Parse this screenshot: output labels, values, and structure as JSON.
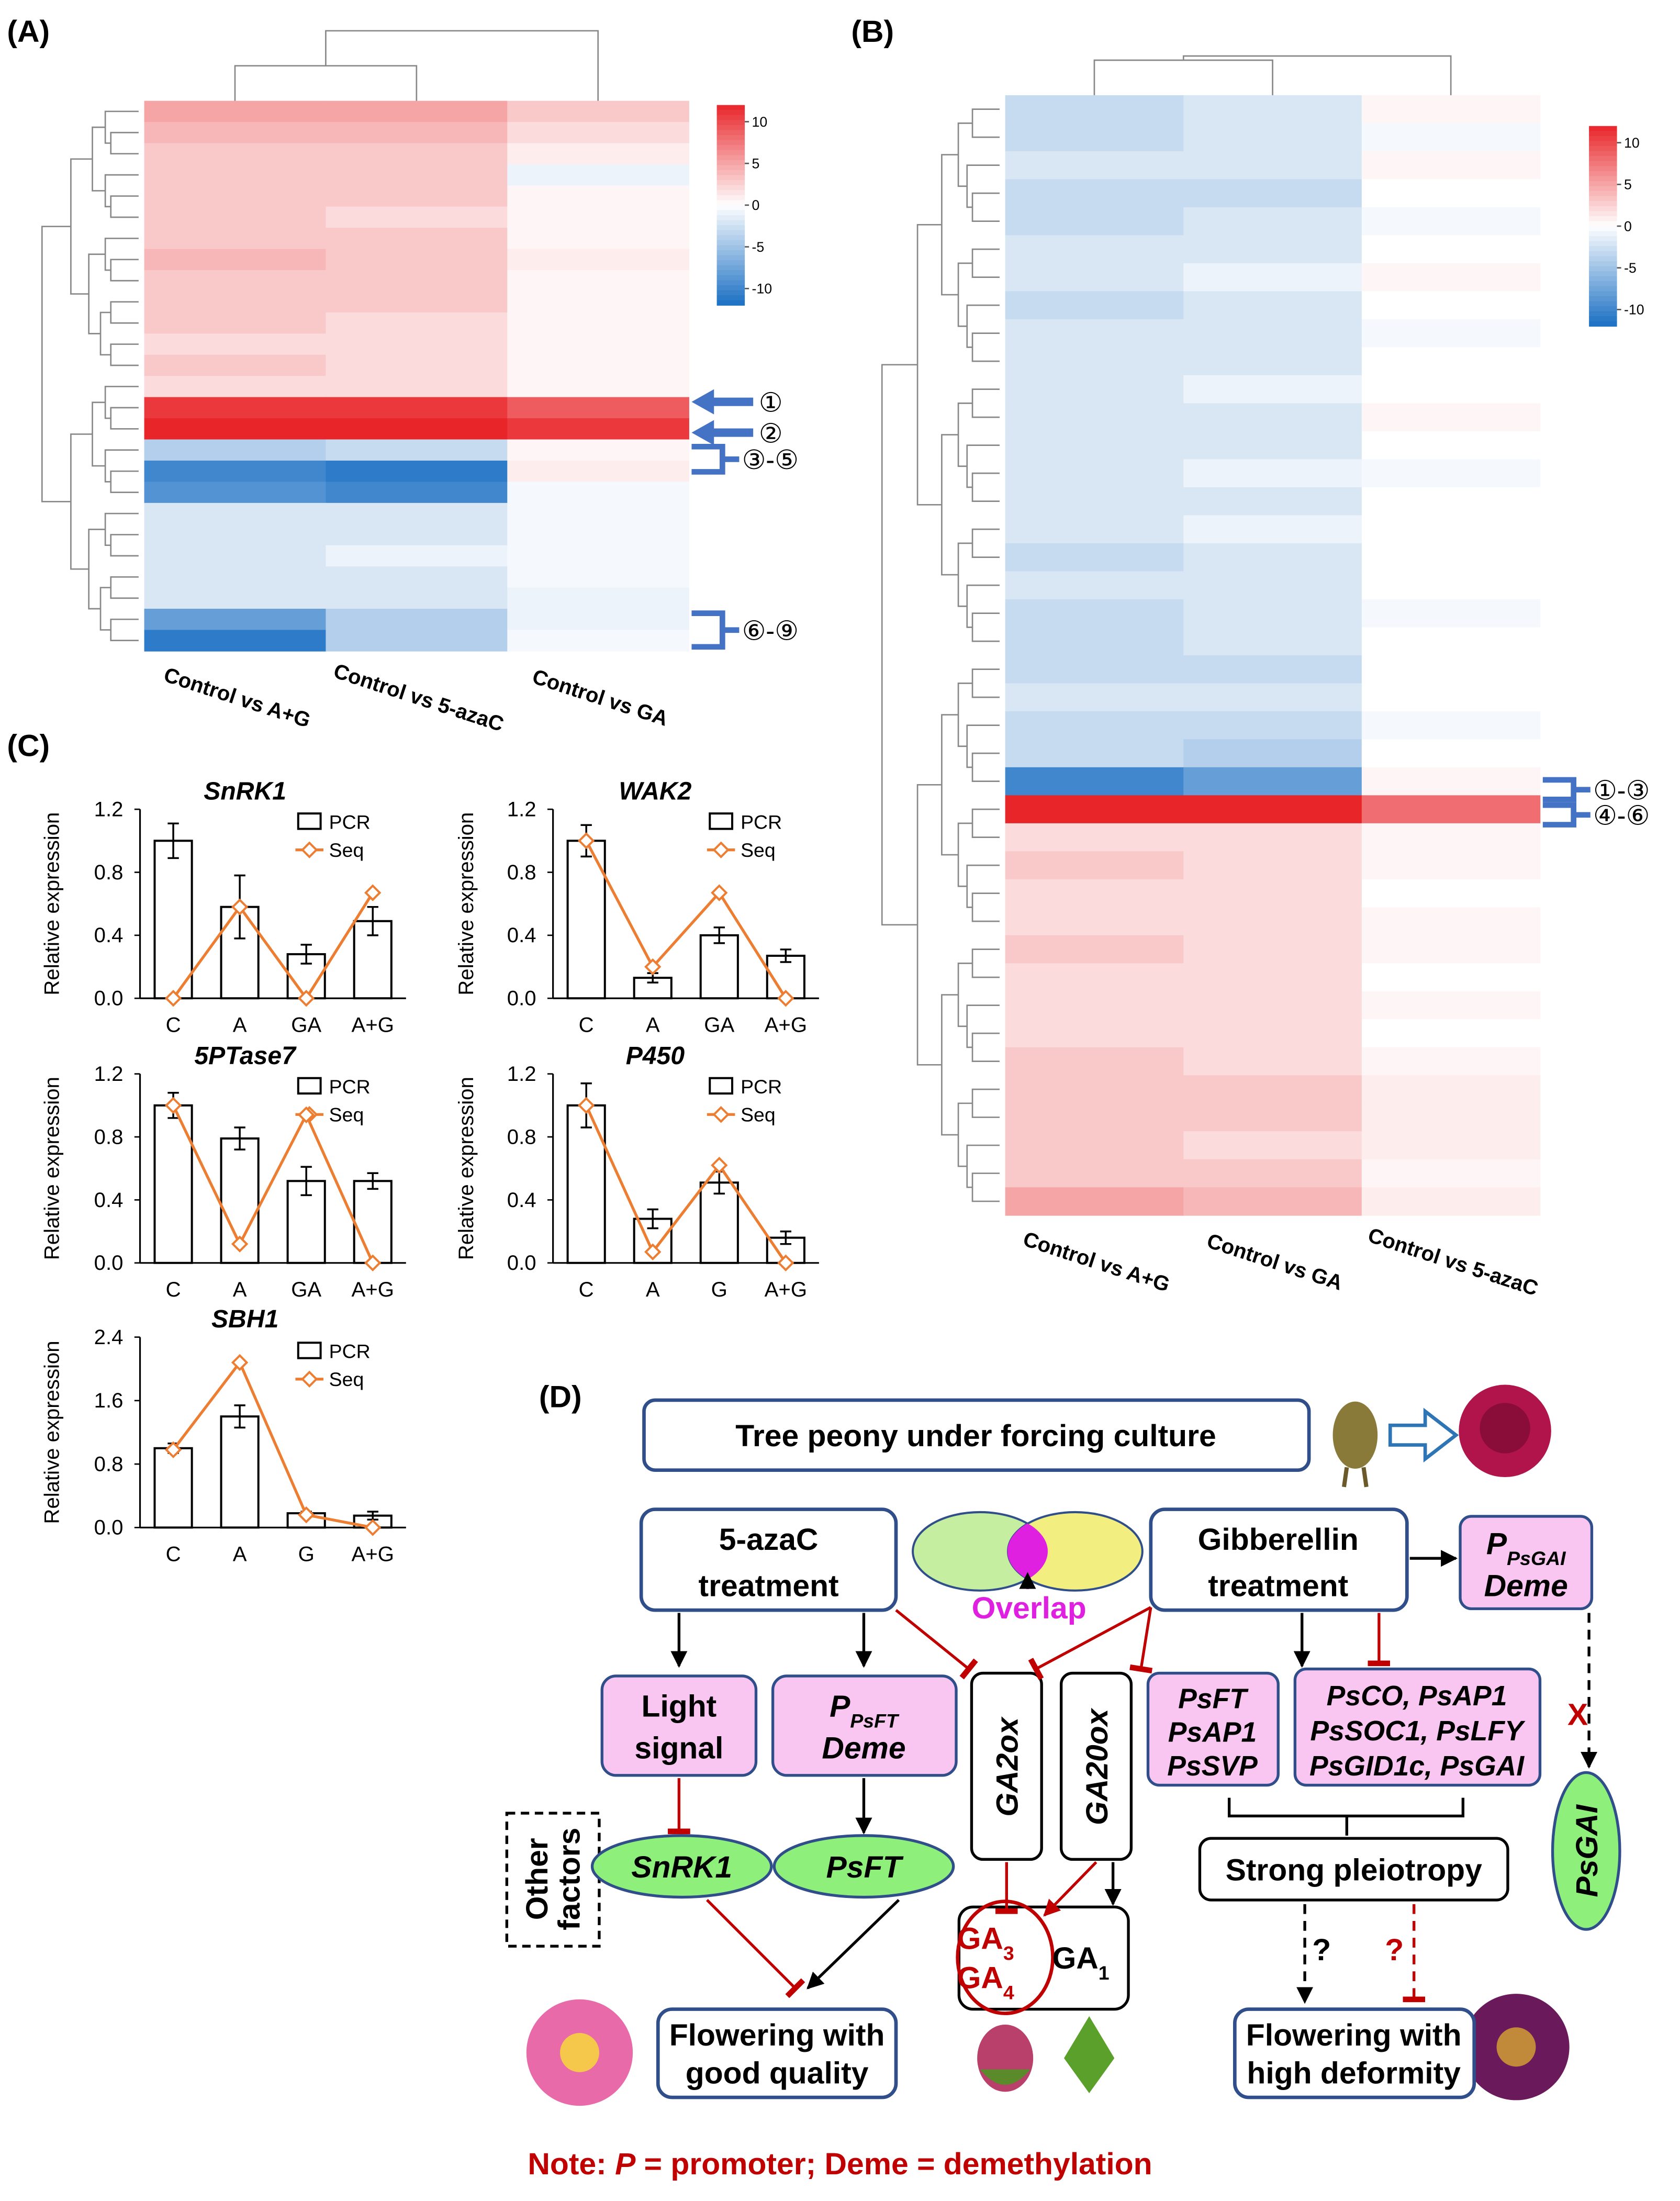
{
  "panel_labels": [
    "(A)",
    "(B)",
    "(C)"
  ],
  "chart_data": [
    {
      "type": "heatmap",
      "categories": [
        "Control vs A+G",
        "Control vs 5-azaC",
        "Control vs GA"
      ],
      "values": [
        [
          5,
          5,
          3
        ],
        [
          4,
          4,
          2
        ],
        [
          3,
          3,
          1
        ],
        [
          3,
          3,
          -1
        ],
        [
          3,
          3,
          0.5
        ],
        [
          3,
          2,
          0.5
        ],
        [
          3,
          3,
          0.5
        ],
        [
          4,
          3,
          1
        ],
        [
          3,
          3,
          0.5
        ],
        [
          3,
          3,
          0.5
        ],
        [
          3,
          2,
          0.5
        ],
        [
          2,
          2,
          0.5
        ],
        [
          3,
          2,
          0.5
        ],
        [
          2,
          2,
          0.5
        ],
        [
          11,
          11,
          9
        ],
        [
          12,
          12,
          11
        ],
        [
          -4,
          -3,
          0.5
        ],
        [
          -10,
          -11,
          1
        ],
        [
          -9,
          -10,
          -0.5
        ],
        [
          -2,
          -2,
          -0.5
        ],
        [
          -2,
          -2,
          -0.5
        ],
        [
          -2,
          -1,
          -0.5
        ],
        [
          -2,
          -2,
          -0.5
        ],
        [
          -2,
          -2,
          -1
        ],
        [
          -8,
          -4,
          -1
        ],
        [
          -11,
          -4,
          -0.5
        ]
      ],
      "clim": [
        -12,
        12
      ],
      "colorbar_ticks": [
        10,
        5,
        0,
        -5,
        -10
      ],
      "colors": [
        "#1a6fc4",
        "#ffffff",
        "#e8262a"
      ],
      "annotations": [
        "①",
        "②",
        "③-⑤",
        "⑥-⑨"
      ]
    },
    {
      "type": "heatmap",
      "categories": [
        "Control vs A+G",
        "Control vs GA",
        "Control vs 5-azaC"
      ],
      "values": [
        [
          -3,
          -2,
          0.5
        ],
        [
          -3,
          -2,
          -0.5
        ],
        [
          -2,
          -2,
          0.5
        ],
        [
          -3,
          -3,
          0
        ],
        [
          -3,
          -2,
          -0.5
        ],
        [
          -2,
          -2,
          0
        ],
        [
          -2,
          -1,
          0.5
        ],
        [
          -3,
          -2,
          0
        ],
        [
          -2,
          -2,
          -0.5
        ],
        [
          -2,
          -2,
          0
        ],
        [
          -2,
          -1,
          0
        ],
        [
          -2,
          -2,
          0.5
        ],
        [
          -2,
          -2,
          0
        ],
        [
          -2,
          -1,
          -0.5
        ],
        [
          -2,
          -2,
          0
        ],
        [
          -2,
          -1,
          0
        ],
        [
          -3,
          -2,
          0
        ],
        [
          -2,
          -2,
          0
        ],
        [
          -3,
          -2,
          -0.5
        ],
        [
          -3,
          -2,
          0
        ],
        [
          -3,
          -3,
          0
        ],
        [
          -2,
          -2,
          0
        ],
        [
          -3,
          -3,
          -0.5
        ],
        [
          -3,
          -4,
          0
        ],
        [
          -10,
          -8,
          0.5
        ],
        [
          12,
          12,
          8
        ],
        [
          2,
          2,
          0.5
        ],
        [
          3,
          2,
          0.5
        ],
        [
          2,
          2,
          0
        ],
        [
          2,
          2,
          0.5
        ],
        [
          3,
          2,
          0.5
        ],
        [
          2,
          2,
          0
        ],
        [
          2,
          2,
          0.5
        ],
        [
          2,
          2,
          0
        ],
        [
          3,
          2,
          0.5
        ],
        [
          3,
          3,
          1
        ],
        [
          3,
          3,
          1
        ],
        [
          3,
          2,
          1
        ],
        [
          3,
          3,
          0.5
        ],
        [
          5,
          4,
          1
        ]
      ],
      "clim": [
        -12,
        12
      ],
      "colorbar_ticks": [
        10,
        5,
        0,
        -5,
        -10
      ],
      "colors": [
        "#1a6fc4",
        "#ffffff",
        "#e8262a"
      ],
      "annotations": [
        "①-③",
        "④-⑥"
      ]
    },
    {
      "type": "bar",
      "title": "SnRK1",
      "y_label": "Relative expression",
      "categories": [
        "C",
        "A",
        "GA",
        "A+G"
      ],
      "ylim": [
        0,
        1.2
      ],
      "yticks": [
        {
          "value": 0,
          "label": "0.0"
        },
        0.4,
        0.8,
        1.2
      ],
      "series": [
        {
          "name": "PCR",
          "kind": "bar",
          "color": "#000000",
          "values": [
            1.0,
            0.58,
            0.28,
            0.49
          ],
          "errors": [
            0.11,
            0.2,
            0.06,
            0.09
          ]
        },
        {
          "name": "Seq",
          "kind": "line",
          "color": "#ed7d31",
          "values": [
            0,
            0.58,
            0,
            0.67
          ]
        }
      ]
    },
    {
      "type": "bar",
      "title": "WAK2",
      "y_label": "Relative expression",
      "categories": [
        "C",
        "A",
        "GA",
        "A+G"
      ],
      "ylim": [
        0,
        1.2
      ],
      "yticks": [
        {
          "value": 0,
          "label": "0.0"
        },
        0.4,
        0.8,
        1.2
      ],
      "series": [
        {
          "name": "PCR",
          "kind": "bar",
          "color": "#000000",
          "values": [
            1.0,
            0.13,
            0.4,
            0.27
          ],
          "errors": [
            0.1,
            0.03,
            0.05,
            0.04
          ]
        },
        {
          "name": "Seq",
          "kind": "line",
          "color": "#ed7d31",
          "values": [
            1.0,
            0.2,
            0.67,
            0
          ]
        }
      ]
    },
    {
      "type": "bar",
      "title": "5PTase7",
      "y_label": "Relative expression",
      "categories": [
        "C",
        "A",
        "GA",
        "A+G"
      ],
      "ylim": [
        0,
        1.2
      ],
      "yticks": [
        {
          "value": 0,
          "label": "0.0"
        },
        0.4,
        0.8,
        1.2
      ],
      "series": [
        {
          "name": "PCR",
          "kind": "bar",
          "color": "#000000",
          "values": [
            1.0,
            0.79,
            0.52,
            0.52
          ],
          "errors": [
            0.08,
            0.07,
            0.09,
            0.05
          ]
        },
        {
          "name": "Seq",
          "kind": "line",
          "color": "#ed7d31",
          "values": [
            1.0,
            0.12,
            0.94,
            0
          ]
        }
      ]
    },
    {
      "type": "bar",
      "title": "P450",
      "y_label": "Relative expression",
      "categories": [
        "C",
        "A",
        "G",
        "A+G"
      ],
      "ylim": [
        0,
        1.2
      ],
      "yticks": [
        {
          "value": 0,
          "label": "0.0"
        },
        0.4,
        0.8,
        1.2
      ],
      "series": [
        {
          "name": "PCR",
          "kind": "bar",
          "color": "#000000",
          "values": [
            1.0,
            0.28,
            0.51,
            0.16
          ],
          "errors": [
            0.14,
            0.06,
            0.07,
            0.04
          ]
        },
        {
          "name": "Seq",
          "kind": "line",
          "color": "#ed7d31",
          "values": [
            1.0,
            0.07,
            0.62,
            0
          ]
        }
      ]
    },
    {
      "type": "bar",
      "title": "SBH1",
      "y_label": "Relative expression",
      "categories": [
        "C",
        "A",
        "G",
        "A+G"
      ],
      "ylim": [
        0,
        2.4
      ],
      "yticks": [
        {
          "value": 0,
          "label": "0.0"
        },
        0.8,
        1.6,
        2.4
      ],
      "series": [
        {
          "name": "PCR",
          "kind": "bar",
          "color": "#000000",
          "values": [
            1.0,
            1.4,
            0.18,
            0.15
          ],
          "errors": [
            0.06,
            0.14,
            0.02,
            0.05
          ]
        },
        {
          "name": "Seq",
          "kind": "line",
          "color": "#ed7d31",
          "values": [
            0.98,
            2.08,
            0.16,
            0
          ]
        }
      ]
    }
  ],
  "diagram": {
    "label": "(D)",
    "top": "Tree peony under forcing culture",
    "aza": [
      "5-azaC",
      "treatment"
    ],
    "overlap": "Overlap",
    "gib": [
      "Gibberellin",
      "treatment"
    ],
    "p_psgai": {
      "main": "P",
      "sub": "PsGAI",
      "line2": "Deme"
    },
    "light": [
      "Light",
      "signal"
    ],
    "p_psft": {
      "main": "P",
      "sub": "PsFT",
      "line2": "Deme"
    },
    "ga2ox": "GA2ox",
    "ga20ox": "GA20ox",
    "ft_box": [
      "PsFT",
      "PsAP1",
      "PsSVP"
    ],
    "co_box": [
      "PsCO, PsAP1",
      "PsSOC1, PsLFY",
      "PsGID1c, PsGAI"
    ],
    "other": [
      "Other",
      "factors"
    ],
    "snrk1": "SnRK1",
    "psft": "PsFT",
    "pleiotropy": "Strong pleiotropy",
    "psgai": "PsGAI",
    "ga": [
      {
        "main": "GA",
        "sub": "3"
      },
      {
        "main": "GA",
        "sub": "4"
      },
      {
        "main": "GA",
        "sub": "1"
      }
    ],
    "x": "X",
    "q": [
      "?",
      "?"
    ],
    "good": [
      "Flowering with",
      "good quality"
    ],
    "bad": [
      "Flowering with",
      "high deformity"
    ],
    "note": {
      "prefix": "Note: ",
      "p": "P",
      "rest": " = promoter; Deme = demethylation"
    }
  }
}
